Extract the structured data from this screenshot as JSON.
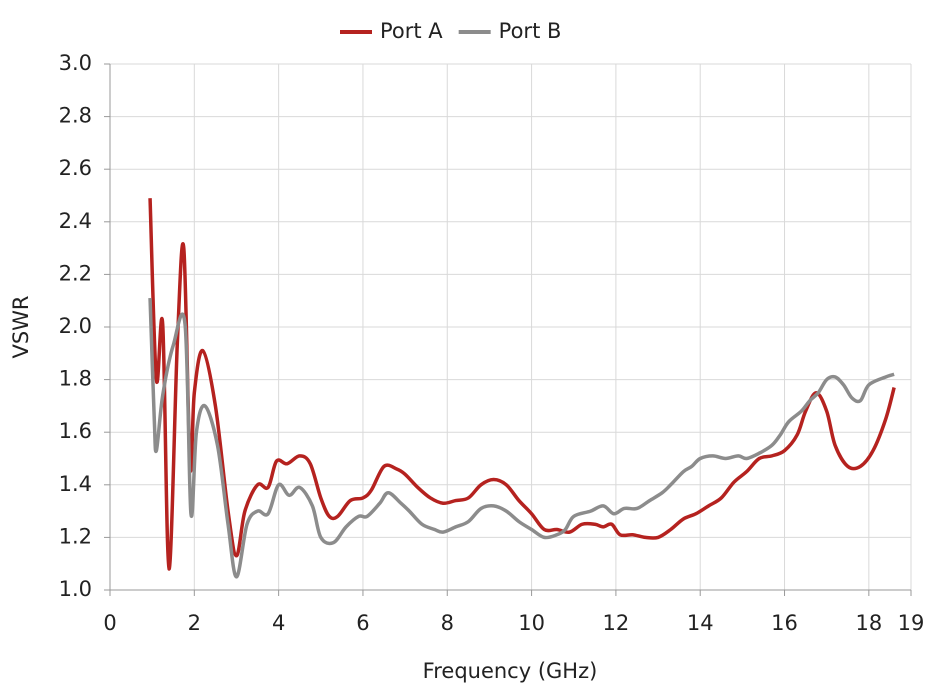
{
  "chart_data": {
    "type": "line",
    "x_label": "Frequency (GHz)",
    "y_label": "VSWR",
    "xlim": [
      0,
      19
    ],
    "ylim": [
      1.0,
      3.0
    ],
    "xticks": [
      0,
      2,
      4,
      6,
      8,
      10,
      12,
      14,
      16,
      18,
      19
    ],
    "yticks": [
      {
        "value": 1,
        "label": "1.0"
      },
      1.2,
      1.4,
      1.6,
      1.8,
      {
        "value": 2,
        "label": "2.0"
      },
      2.2,
      2.4,
      2.6,
      2.8,
      {
        "value": 3,
        "label": "3.0"
      }
    ],
    "grid": true,
    "legend": "top",
    "series": [
      {
        "name": "Port A",
        "color": "#b5221f",
        "x": [
          0.95,
          1.1,
          1.25,
          1.4,
          1.6,
          1.75,
          1.9,
          2.0,
          2.2,
          2.5,
          2.8,
          3.0,
          3.2,
          3.5,
          3.75,
          3.95,
          4.2,
          4.5,
          4.75,
          5.0,
          5.2,
          5.4,
          5.7,
          6.0,
          6.2,
          6.5,
          6.8,
          7.0,
          7.3,
          7.6,
          7.9,
          8.2,
          8.5,
          8.8,
          9.1,
          9.4,
          9.7,
          10.0,
          10.3,
          10.6,
          10.9,
          11.2,
          11.5,
          11.7,
          11.9,
          12.1,
          12.4,
          12.7,
          13.0,
          13.3,
          13.6,
          13.9,
          14.2,
          14.5,
          14.8,
          15.1,
          15.4,
          15.7,
          16.0,
          16.3,
          16.5,
          16.75,
          17.0,
          17.2,
          17.5,
          17.8,
          18.1,
          18.4,
          18.6
        ],
        "values": [
          2.49,
          1.8,
          2.01,
          1.08,
          1.95,
          2.3,
          1.47,
          1.75,
          1.91,
          1.7,
          1.3,
          1.13,
          1.3,
          1.4,
          1.39,
          1.49,
          1.48,
          1.51,
          1.48,
          1.35,
          1.28,
          1.28,
          1.34,
          1.35,
          1.38,
          1.47,
          1.46,
          1.44,
          1.39,
          1.35,
          1.33,
          1.34,
          1.35,
          1.4,
          1.42,
          1.4,
          1.34,
          1.29,
          1.23,
          1.23,
          1.22,
          1.25,
          1.25,
          1.24,
          1.25,
          1.21,
          1.21,
          1.2,
          1.2,
          1.23,
          1.27,
          1.29,
          1.32,
          1.35,
          1.41,
          1.45,
          1.5,
          1.51,
          1.53,
          1.59,
          1.68,
          1.75,
          1.68,
          1.55,
          1.47,
          1.47,
          1.53,
          1.65,
          1.77
        ]
      },
      {
        "name": "Port B",
        "color": "#8c8c8c",
        "x": [
          0.95,
          1.05,
          1.1,
          1.25,
          1.5,
          1.78,
          1.92,
          2.05,
          2.25,
          2.55,
          2.8,
          3.0,
          3.25,
          3.5,
          3.75,
          4.0,
          4.25,
          4.5,
          4.8,
          5.0,
          5.3,
          5.6,
          5.9,
          6.1,
          6.4,
          6.6,
          6.9,
          7.1,
          7.4,
          7.7,
          7.9,
          8.2,
          8.5,
          8.8,
          9.1,
          9.4,
          9.7,
          10.0,
          10.3,
          10.6,
          10.8,
          11.0,
          11.4,
          11.7,
          11.95,
          12.2,
          12.5,
          12.8,
          13.1,
          13.3,
          13.6,
          13.8,
          14.0,
          14.3,
          14.6,
          14.9,
          15.1,
          15.4,
          15.7,
          15.9,
          16.1,
          16.4,
          16.6,
          16.8,
          17.0,
          17.2,
          17.4,
          17.6,
          17.8,
          18.0,
          18.4,
          18.6
        ],
        "values": [
          2.11,
          1.65,
          1.53,
          1.74,
          1.93,
          2.01,
          1.29,
          1.6,
          1.7,
          1.55,
          1.25,
          1.05,
          1.25,
          1.3,
          1.29,
          1.4,
          1.36,
          1.39,
          1.32,
          1.2,
          1.18,
          1.24,
          1.28,
          1.28,
          1.33,
          1.37,
          1.33,
          1.3,
          1.25,
          1.23,
          1.22,
          1.24,
          1.26,
          1.31,
          1.32,
          1.3,
          1.26,
          1.23,
          1.2,
          1.21,
          1.23,
          1.28,
          1.3,
          1.32,
          1.29,
          1.31,
          1.31,
          1.34,
          1.37,
          1.4,
          1.45,
          1.47,
          1.5,
          1.51,
          1.5,
          1.51,
          1.5,
          1.52,
          1.55,
          1.59,
          1.64,
          1.68,
          1.72,
          1.75,
          1.8,
          1.81,
          1.78,
          1.73,
          1.72,
          1.78,
          1.81,
          1.82
        ]
      }
    ]
  }
}
